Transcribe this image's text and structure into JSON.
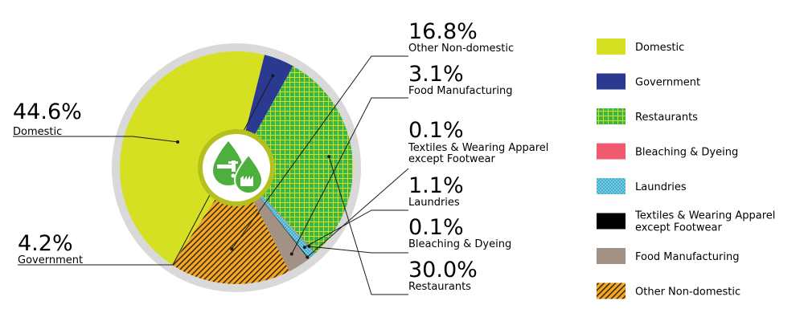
{
  "chart_data": {
    "type": "pie",
    "title": "",
    "unit": "%",
    "center_icon": "water-drop-tap-factory-icon",
    "slices": [
      {
        "label": "Domestic",
        "value": 44.6,
        "value_label": "44.6%",
        "color": "#D4E021",
        "pattern": "solid"
      },
      {
        "label": "Government",
        "value": 4.2,
        "value_label": "4.2%",
        "color": "#2B3990",
        "pattern": "solid"
      },
      {
        "label": "Restaurants",
        "value": 30.0,
        "value_label": "30.0%",
        "color": "#39B54A",
        "pattern": "grid",
        "pattern_color": "#D4E021"
      },
      {
        "label": "Bleaching & Dyeing",
        "value": 0.1,
        "value_label": "0.1%",
        "color": "#EF5A6F",
        "pattern": "solid"
      },
      {
        "label": "Laundries",
        "value": 1.1,
        "value_label": "1.1%",
        "color": "#6DCFE6",
        "pattern": "dots",
        "pattern_color": "#2B7FA3"
      },
      {
        "label": "Textiles & Wearing Apparel except Footwear",
        "label_lines": [
          "Textiles & Wearing Apparel",
          "except Footwear"
        ],
        "value": 0.1,
        "value_label": "0.1%",
        "color": "#000000",
        "pattern": "solid"
      },
      {
        "label": "Food Manufacturing",
        "value": 3.1,
        "value_label": "3.1%",
        "color": "#A39186",
        "pattern": "solid"
      },
      {
        "label": "Other Non-domestic",
        "value": 16.8,
        "value_label": "16.8%",
        "color": "#F7A823",
        "pattern": "stripes",
        "pattern_color": "#3A2A10"
      }
    ],
    "legend_order": [
      "Domestic",
      "Government",
      "Restaurants",
      "Bleaching & Dyeing",
      "Laundries",
      "Textiles & Wearing Apparel except Footwear",
      "Food Manufacturing",
      "Other Non-domestic"
    ],
    "legend_position": "right"
  }
}
